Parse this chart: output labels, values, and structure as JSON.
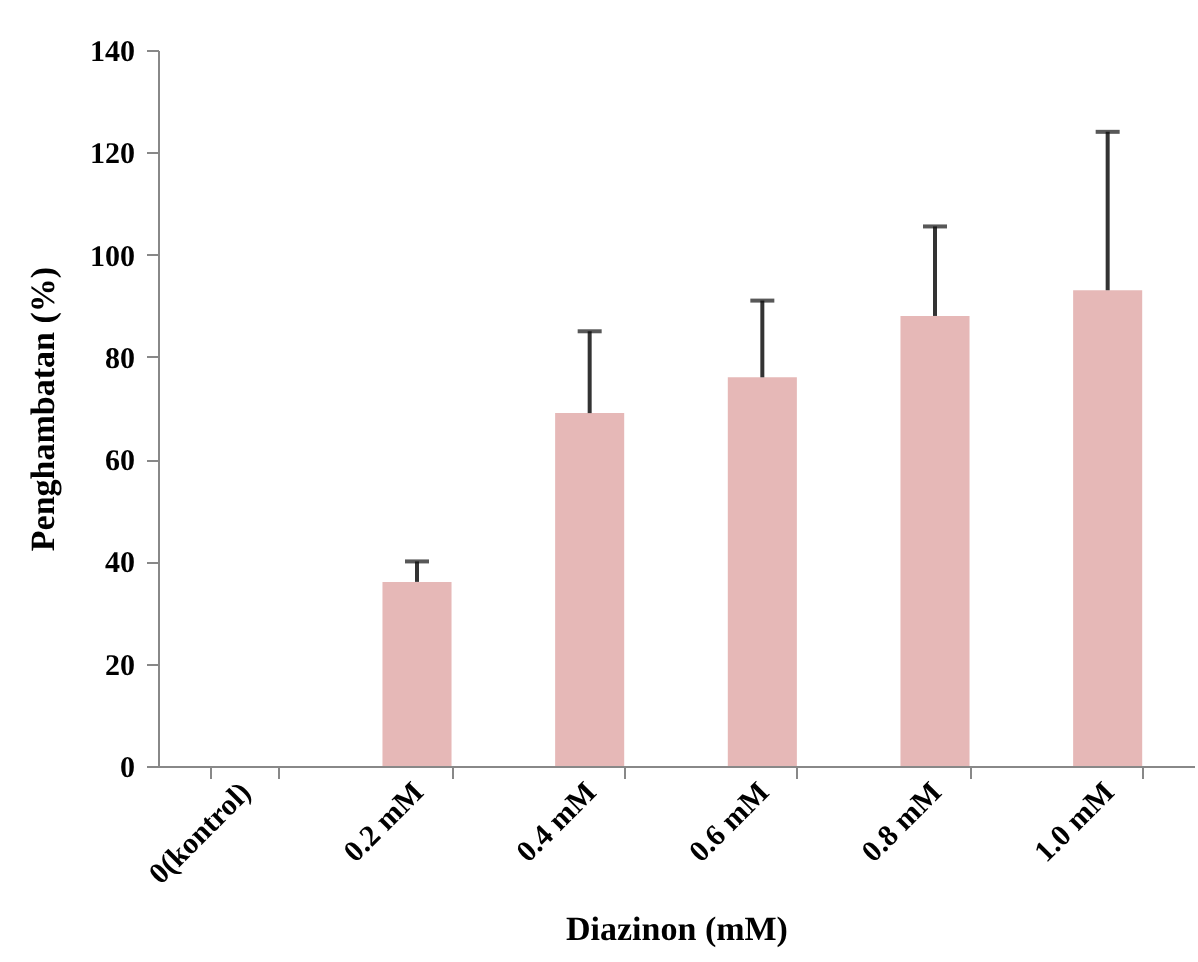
{
  "chart_data": {
    "type": "bar",
    "xlabel": "Diazinon (mM)",
    "ylabel": "Penghambatan (%)",
    "categories": [
      "0(kontrol)",
      "0.2 mM",
      "0.4 mM",
      "0.6 mM",
      "0.8 mM",
      "1.0 mM"
    ],
    "values": [
      0,
      36,
      69,
      76,
      88,
      93
    ],
    "errors": [
      null,
      [
        36,
        40
      ],
      [
        69,
        85
      ],
      [
        76,
        91
      ],
      [
        88,
        105.5
      ],
      [
        93,
        124
      ]
    ],
    "color": "#e6b8b7",
    "ylim": [
      0,
      140
    ],
    "yticks": [
      0,
      20,
      40,
      60,
      80,
      100,
      120,
      140
    ],
    "grid": false
  }
}
